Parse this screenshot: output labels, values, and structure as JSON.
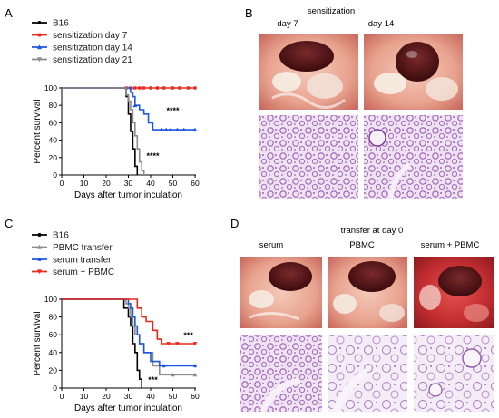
{
  "panels": {
    "A": {
      "letter": "A"
    },
    "B": {
      "letter": "B",
      "title": "sensitization",
      "col_labels": [
        "day 7",
        "day 14"
      ]
    },
    "C": {
      "letter": "C"
    },
    "D": {
      "letter": "D",
      "title": "transfer at day 0",
      "col_labels": [
        "serum",
        "PBMC",
        "serum + PBMC"
      ]
    }
  },
  "chart_data": [
    {
      "panel": "A",
      "type": "line",
      "step": true,
      "xlabel": "Days after tumor inculation",
      "ylabel": "Percent survival",
      "xlim": [
        0,
        60
      ],
      "ylim": [
        0,
        100
      ],
      "xticks": [
        0,
        10,
        20,
        30,
        40,
        50,
        60
      ],
      "yticks": [
        0,
        20,
        40,
        60,
        80,
        100
      ],
      "legend_position": "top-left",
      "series": [
        {
          "name": "B16",
          "color": "#000000",
          "marker": "circle",
          "x": [
            0,
            29,
            30,
            31,
            32,
            33,
            34
          ],
          "y": [
            100,
            90,
            70,
            50,
            30,
            10,
            0
          ]
        },
        {
          "name": "sensitization day 7",
          "color": "#e8291c",
          "marker": "square",
          "x": [
            0,
            60
          ],
          "y": [
            100,
            100
          ],
          "censor_x": [
            29,
            31,
            33,
            35,
            37,
            40,
            43,
            46,
            50,
            53,
            57,
            60
          ]
        },
        {
          "name": "sensitization day 14",
          "color": "#1f56e0",
          "marker": "triangle-up",
          "x": [
            0,
            31,
            32,
            33,
            35,
            37,
            39,
            41,
            60
          ],
          "y": [
            100,
            95,
            90,
            80,
            75,
            70,
            60,
            52,
            52
          ],
          "censor_x": [
            33,
            45,
            47,
            49,
            52,
            55,
            60
          ]
        },
        {
          "name": "sensitization day 21",
          "color": "#8c8c8c",
          "marker": "triangle-down",
          "x": [
            0,
            29,
            30,
            31,
            32,
            33,
            34,
            35,
            36,
            37
          ],
          "y": [
            100,
            92,
            85,
            75,
            60,
            45,
            30,
            15,
            5,
            0
          ]
        }
      ],
      "annotations": [
        {
          "text": "****",
          "x": 50,
          "y": 74
        },
        {
          "text": "****",
          "x": 41,
          "y": 22
        }
      ]
    },
    {
      "panel": "C",
      "type": "line",
      "step": true,
      "xlabel": "Days after tumor inculation",
      "ylabel": "Percent survival",
      "xlim": [
        0,
        60
      ],
      "ylim": [
        0,
        100
      ],
      "xticks": [
        0,
        10,
        20,
        30,
        40,
        50,
        60
      ],
      "yticks": [
        0,
        20,
        40,
        60,
        80,
        100
      ],
      "legend_position": "top-left",
      "series": [
        {
          "name": "B16",
          "color": "#000000",
          "marker": "circle",
          "x": [
            0,
            28,
            30,
            31,
            32,
            33,
            34,
            35,
            36
          ],
          "y": [
            100,
            90,
            80,
            70,
            50,
            40,
            20,
            10,
            0
          ]
        },
        {
          "name": "PBMC transfer",
          "color": "#8c8c8c",
          "marker": "triangle-up",
          "x": [
            0,
            29,
            30,
            31,
            32,
            33,
            35,
            37,
            41,
            44,
            60
          ],
          "y": [
            100,
            95,
            90,
            80,
            70,
            60,
            50,
            40,
            25,
            15,
            15
          ],
          "censor_x": [
            50,
            60
          ]
        },
        {
          "name": "serum transfer",
          "color": "#1f56e0",
          "marker": "square",
          "x": [
            0,
            30,
            31,
            32,
            33,
            34,
            35,
            37,
            40,
            44,
            60
          ],
          "y": [
            100,
            95,
            90,
            80,
            70,
            60,
            50,
            40,
            30,
            25,
            25
          ],
          "censor_x": [
            46,
            60
          ]
        },
        {
          "name": "serum + PBMC",
          "color": "#e8291c",
          "marker": "triangle-down",
          "x": [
            0,
            34,
            36,
            38,
            41,
            43,
            45,
            60
          ],
          "y": [
            100,
            90,
            80,
            75,
            65,
            55,
            50,
            50
          ],
          "censor_x": [
            48,
            52,
            60
          ]
        }
      ],
      "annotations": [
        {
          "text": "***",
          "x": 57,
          "y": 59
        },
        {
          "text": "***",
          "x": 41,
          "y": 9
        }
      ]
    }
  ]
}
